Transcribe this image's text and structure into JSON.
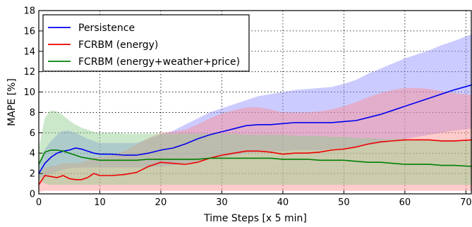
{
  "chart_data": {
    "type": "line",
    "title": "",
    "xlabel": "Time Steps [x 5 min]",
    "ylabel": "MAPE [%]",
    "xlim": [
      0,
      71
    ],
    "ylim": [
      0,
      18
    ],
    "xticks": [
      0,
      10,
      20,
      30,
      40,
      50,
      60,
      70
    ],
    "yticks": [
      0,
      2,
      4,
      6,
      8,
      10,
      12,
      14,
      16,
      18
    ],
    "grid": "dotted",
    "legend_position": "top-left",
    "series": [
      {
        "name": "Persistence",
        "color": "#0000ee",
        "band_color": "#8c8cff",
        "x": [
          0,
          1,
          2,
          3,
          4,
          5,
          6,
          7,
          8,
          9,
          10,
          12,
          14,
          16,
          18,
          20,
          22,
          24,
          26,
          28,
          30,
          32,
          34,
          36,
          38,
          40,
          42,
          44,
          46,
          48,
          50,
          52,
          54,
          56,
          58,
          60,
          62,
          64,
          66,
          68,
          71
        ],
        "mean": [
          2.0,
          3.0,
          3.6,
          4.0,
          4.2,
          4.3,
          4.5,
          4.4,
          4.2,
          4.0,
          3.9,
          3.9,
          3.8,
          3.8,
          4.0,
          4.3,
          4.5,
          4.9,
          5.4,
          5.8,
          6.1,
          6.4,
          6.7,
          6.8,
          6.8,
          6.9,
          7.0,
          7.0,
          7.0,
          7.0,
          7.1,
          7.2,
          7.5,
          7.8,
          8.2,
          8.6,
          9.0,
          9.4,
          9.8,
          10.2,
          10.7
        ],
        "upper": [
          2.8,
          4.4,
          5.2,
          5.8,
          6.2,
          6.2,
          6.0,
          5.7,
          5.4,
          5.2,
          5.0,
          5.0,
          5.0,
          5.0,
          5.4,
          5.8,
          6.2,
          6.8,
          7.4,
          8.0,
          8.4,
          8.8,
          9.2,
          9.6,
          9.8,
          10.0,
          10.2,
          10.3,
          10.4,
          10.5,
          10.8,
          11.2,
          11.8,
          12.3,
          12.8,
          13.3,
          13.7,
          14.1,
          14.6,
          15.0,
          15.7
        ],
        "lower": [
          1.5,
          1.8,
          2.0,
          2.2,
          2.4,
          2.5,
          2.6,
          2.6,
          2.6,
          2.6,
          2.6,
          2.6,
          2.6,
          2.6,
          2.6,
          2.7,
          2.8,
          3.0,
          3.2,
          3.4,
          3.6,
          3.8,
          4.0,
          4.1,
          4.2,
          4.2,
          4.3,
          4.3,
          4.3,
          4.4,
          4.5,
          4.6,
          4.8,
          5.0,
          5.2,
          5.4,
          5.6,
          5.8,
          6.0,
          6.2,
          6.4
        ]
      },
      {
        "name": "FCRBM (energy)",
        "color": "#ee0000",
        "band_color": "#ff8c8c",
        "x": [
          0,
          1,
          2,
          3,
          4,
          5,
          6,
          7,
          8,
          9,
          10,
          12,
          14,
          16,
          18,
          20,
          22,
          24,
          26,
          28,
          30,
          32,
          34,
          36,
          38,
          40,
          42,
          44,
          46,
          48,
          50,
          52,
          54,
          56,
          58,
          60,
          62,
          64,
          66,
          68,
          71
        ],
        "mean": [
          0.9,
          1.8,
          1.7,
          1.6,
          1.8,
          1.5,
          1.4,
          1.4,
          1.6,
          2.0,
          1.8,
          1.8,
          1.9,
          2.1,
          2.7,
          3.1,
          3.0,
          2.9,
          3.1,
          3.5,
          3.8,
          4.0,
          4.2,
          4.2,
          4.1,
          3.9,
          4.0,
          4.0,
          4.1,
          4.3,
          4.4,
          4.6,
          4.9,
          5.1,
          5.2,
          5.3,
          5.3,
          5.3,
          5.2,
          5.2,
          5.3
        ],
        "upper": [
          1.6,
          2.6,
          2.7,
          2.8,
          3.0,
          3.0,
          3.0,
          3.1,
          3.3,
          3.6,
          3.6,
          3.8,
          4.2,
          4.8,
          5.5,
          6.0,
          6.1,
          6.3,
          6.8,
          7.4,
          7.9,
          8.2,
          8.5,
          8.5,
          8.3,
          8.0,
          8.0,
          8.0,
          8.1,
          8.3,
          8.6,
          9.0,
          9.5,
          9.9,
          10.2,
          10.4,
          10.4,
          10.3,
          10.1,
          9.9,
          9.7
        ],
        "lower": [
          0.2,
          0.3,
          0.3,
          0.3,
          0.3,
          0.3,
          0.3,
          0.3,
          0.3,
          0.3,
          0.3,
          0.3,
          0.3,
          0.3,
          0.3,
          0.3,
          0.3,
          0.3,
          0.3,
          0.3,
          0.3,
          0.3,
          0.3,
          0.3,
          0.3,
          0.3,
          0.3,
          0.3,
          0.3,
          0.3,
          0.3,
          0.3,
          0.3,
          0.3,
          0.3,
          0.3,
          0.3,
          0.3,
          0.3,
          0.3,
          0.3
        ]
      },
      {
        "name": "FCRBM (energy+weather+price)",
        "color": "#008000",
        "band_color": "#8ccc8c",
        "x": [
          0,
          1,
          2,
          3,
          4,
          5,
          6,
          7,
          8,
          9,
          10,
          12,
          14,
          16,
          18,
          20,
          22,
          24,
          26,
          28,
          30,
          32,
          34,
          36,
          38,
          40,
          42,
          44,
          46,
          48,
          50,
          52,
          54,
          56,
          58,
          60,
          62,
          64,
          66,
          68,
          71
        ],
        "mean": [
          2.9,
          4.1,
          4.3,
          4.3,
          4.2,
          4.0,
          3.8,
          3.6,
          3.5,
          3.4,
          3.3,
          3.3,
          3.3,
          3.3,
          3.4,
          3.4,
          3.4,
          3.4,
          3.4,
          3.5,
          3.5,
          3.5,
          3.5,
          3.5,
          3.5,
          3.4,
          3.4,
          3.4,
          3.3,
          3.3,
          3.3,
          3.2,
          3.1,
          3.1,
          3.0,
          2.9,
          2.9,
          2.9,
          2.8,
          2.8,
          2.7
        ],
        "upper": [
          4.5,
          7.5,
          8.2,
          8.1,
          7.7,
          7.2,
          6.8,
          6.5,
          6.3,
          6.1,
          6.0,
          6.0,
          5.9,
          5.9,
          5.9,
          5.9,
          5.9,
          5.9,
          5.9,
          5.9,
          5.9,
          5.9,
          5.8,
          5.8,
          5.8,
          5.8,
          5.7,
          5.7,
          5.7,
          5.6,
          5.6,
          5.5,
          5.5,
          5.4,
          5.4,
          5.4,
          5.3,
          5.3,
          5.3,
          5.3,
          5.2
        ],
        "lower": [
          1.3,
          1.0,
          0.9,
          0.9,
          0.9,
          0.9,
          0.9,
          0.9,
          0.9,
          0.9,
          0.9,
          0.9,
          0.9,
          0.9,
          0.9,
          0.9,
          0.9,
          0.9,
          0.9,
          0.9,
          0.9,
          0.9,
          0.9,
          0.9,
          0.9,
          0.9,
          0.9,
          0.9,
          0.9,
          0.9,
          0.9,
          0.9,
          0.9,
          0.9,
          0.9,
          0.9,
          0.9,
          0.9,
          0.9,
          0.9,
          0.9
        ]
      }
    ]
  }
}
